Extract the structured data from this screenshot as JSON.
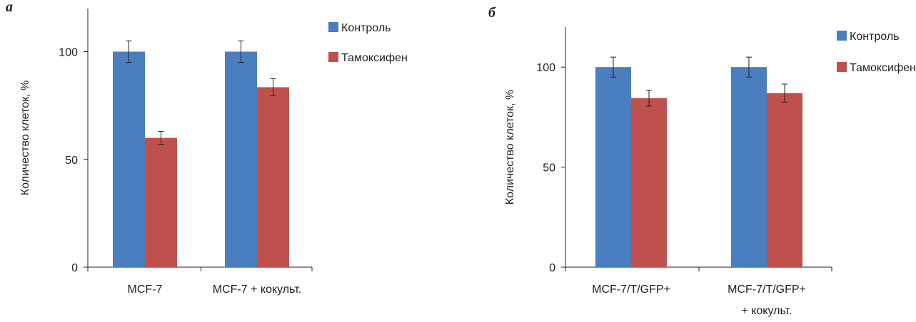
{
  "chart_data": [
    {
      "type": "bar",
      "panel_label": "а",
      "ylabel": "Количество клеток, %",
      "ylim": [
        0,
        120
      ],
      "yticks": [
        0,
        50,
        100
      ],
      "categories": [
        [
          "MCF-7"
        ],
        [
          "MCF-7 + кокульт."
        ]
      ],
      "series": [
        {
          "name": "Контроль",
          "color": "#4a7ebf",
          "values": [
            100,
            100
          ],
          "errors": [
            5,
            5
          ]
        },
        {
          "name": "Тамоксифен",
          "color": "#c0504d",
          "values": [
            60,
            83.5
          ],
          "errors": [
            3,
            4
          ]
        }
      ],
      "legend_position": "top-right",
      "grid": false
    },
    {
      "type": "bar",
      "panel_label": "б",
      "ylabel": "Количество клеток, %",
      "ylim": [
        0,
        120
      ],
      "yticks": [
        0,
        50,
        100
      ],
      "categories": [
        [
          "MCF-7/T/GFP+"
        ],
        [
          "MCF-7/T/GFP+",
          "+ кокульт."
        ]
      ],
      "series": [
        {
          "name": "Контроль",
          "color": "#4a7ebf",
          "values": [
            100,
            100
          ],
          "errors": [
            5,
            5
          ]
        },
        {
          "name": "Тамоксифен",
          "color": "#c0504d",
          "values": [
            84.5,
            87
          ],
          "errors": [
            4,
            4.5
          ]
        }
      ],
      "legend_position": "top-right",
      "grid": false
    }
  ]
}
